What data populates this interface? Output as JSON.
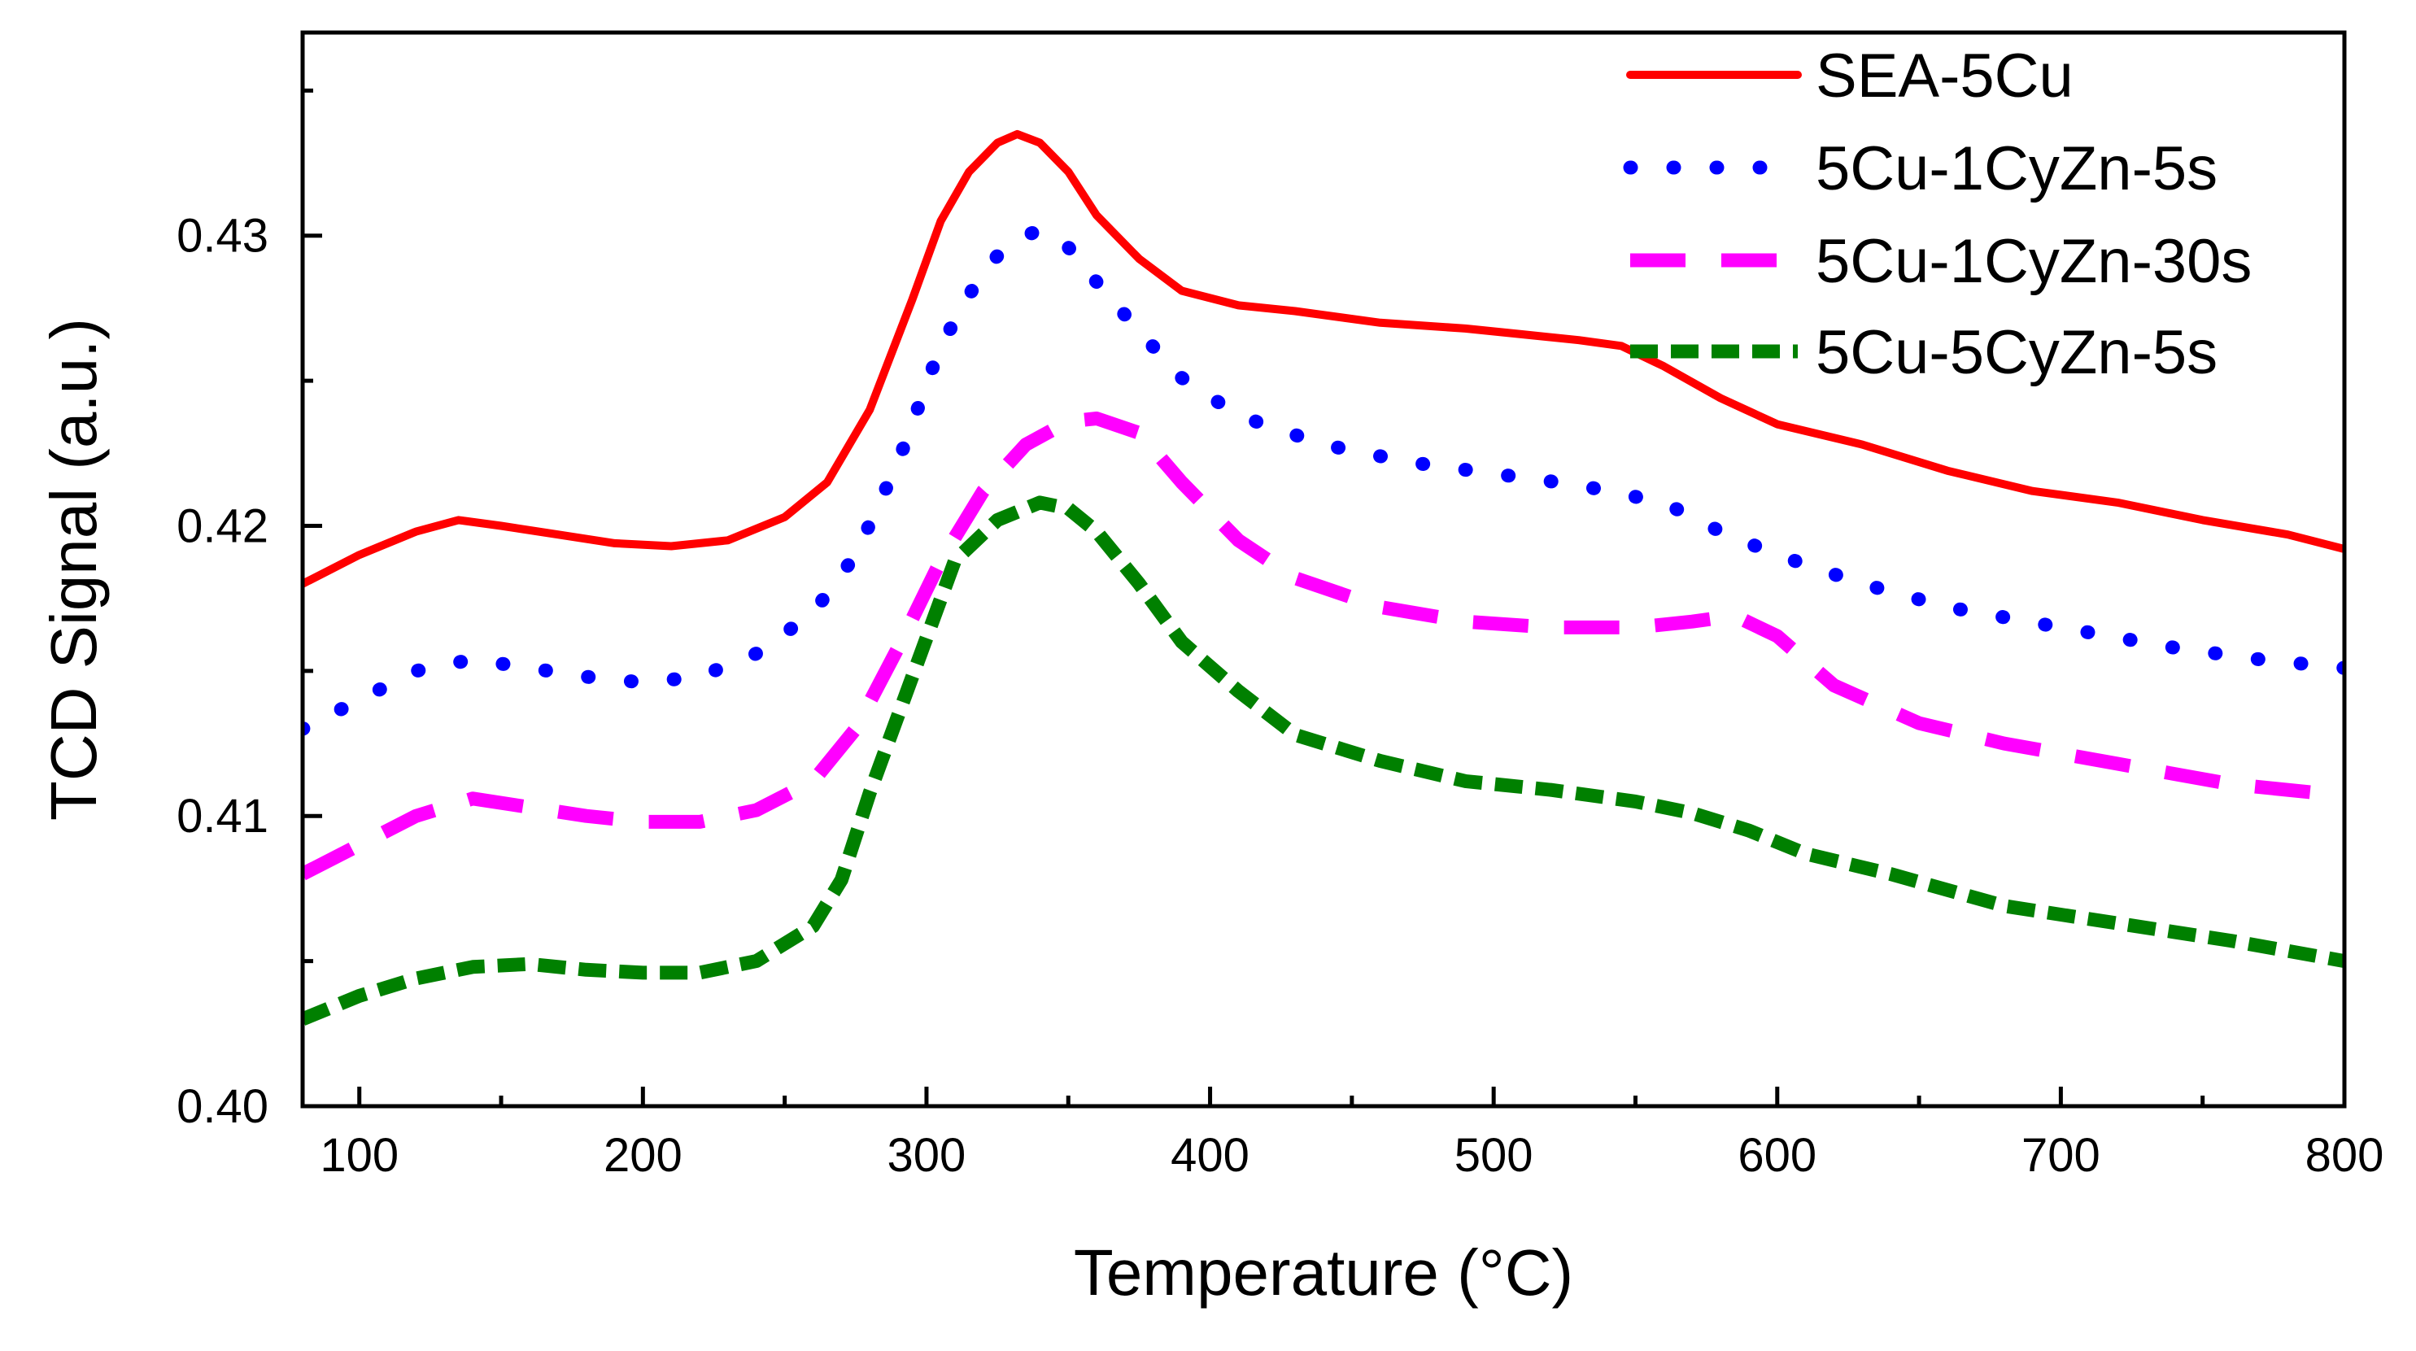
{
  "chart_data": {
    "type": "line",
    "title": "",
    "xlabel": "Temperature (°C)",
    "ylabel": "TCD Signal (a.u.)",
    "xlim": [
      80,
      800
    ],
    "ylim": [
      0.4,
      0.437
    ],
    "x_ticks": [
      100,
      200,
      300,
      400,
      500,
      600,
      700,
      800
    ],
    "x_tick_labels": [
      "100",
      "200",
      "300",
      "400",
      "500",
      "600",
      "700",
      "800"
    ],
    "x_minor_ticks": [
      150,
      250,
      350,
      450,
      550,
      650,
      750
    ],
    "y_ticks": [
      0.4,
      0.41,
      0.42,
      0.43
    ],
    "y_tick_labels": [
      "0.40",
      "0.41",
      "0.42",
      "0.43"
    ],
    "y_minor_ticks": [
      0.405,
      0.415,
      0.425,
      0.435
    ],
    "grid": false,
    "legend_position": "top-right",
    "series": [
      {
        "name": "SEA-5Cu",
        "color": "#ff0000",
        "style": "solid",
        "x": [
          80,
          100,
          120,
          135,
          150,
          170,
          190,
          210,
          230,
          250,
          265,
          280,
          295,
          305,
          315,
          325,
          332,
          340,
          350,
          360,
          375,
          390,
          410,
          430,
          460,
          490,
          510,
          530,
          545,
          560,
          580,
          600,
          630,
          660,
          690,
          720,
          750,
          780,
          800
        ],
        "values": [
          0.418,
          0.419,
          0.4198,
          0.4202,
          0.42,
          0.4197,
          0.4194,
          0.4193,
          0.4195,
          0.4203,
          0.4215,
          0.424,
          0.4278,
          0.4305,
          0.4322,
          0.4332,
          0.4335,
          0.4332,
          0.4322,
          0.4307,
          0.4292,
          0.4281,
          0.4276,
          0.4274,
          0.427,
          0.4268,
          0.4266,
          0.4264,
          0.4262,
          0.4255,
          0.4244,
          0.4235,
          0.4228,
          0.4219,
          0.4212,
          0.4208,
          0.4202,
          0.4197,
          0.4192
        ]
      },
      {
        "name": "5Cu-1CyZn-5s",
        "color": "#0000ff",
        "style": "dotted",
        "x": [
          80,
          100,
          120,
          140,
          160,
          180,
          200,
          220,
          240,
          260,
          275,
          290,
          305,
          320,
          330,
          340,
          350,
          360,
          375,
          390,
          410,
          440,
          470,
          500,
          530,
          560,
          580,
          600,
          630,
          660,
          700,
          740,
          770,
          800
        ],
        "values": [
          0.413,
          0.414,
          0.415,
          0.4154,
          0.4151,
          0.4148,
          0.4146,
          0.4148,
          0.4156,
          0.417,
          0.419,
          0.4222,
          0.4262,
          0.4288,
          0.4298,
          0.4302,
          0.4296,
          0.4284,
          0.4267,
          0.4251,
          0.4238,
          0.4228,
          0.4222,
          0.4218,
          0.4214,
          0.4208,
          0.4198,
          0.419,
          0.418,
          0.4172,
          0.4165,
          0.4158,
          0.4154,
          0.4151
        ]
      },
      {
        "name": "5Cu-1CyZn-30s",
        "color": "#ff00ff",
        "style": "dashed",
        "x": [
          80,
          100,
          120,
          140,
          160,
          180,
          200,
          220,
          240,
          260,
          275,
          290,
          305,
          320,
          335,
          350,
          360,
          375,
          390,
          410,
          430,
          460,
          490,
          520,
          550,
          570,
          585,
          600,
          620,
          650,
          680,
          720,
          760,
          800
        ],
        "values": [
          0.408,
          0.409,
          0.41,
          0.4106,
          0.4103,
          0.41,
          0.4098,
          0.4098,
          0.4102,
          0.4112,
          0.413,
          0.4158,
          0.4188,
          0.4212,
          0.4228,
          0.4236,
          0.4237,
          0.4232,
          0.4215,
          0.4195,
          0.4182,
          0.4172,
          0.4167,
          0.4165,
          0.4165,
          0.4167,
          0.4169,
          0.4162,
          0.4145,
          0.4132,
          0.4125,
          0.4118,
          0.4111,
          0.4107
        ]
      },
      {
        "name": "5Cu-5CyZn-5s",
        "color": "#008000",
        "style": "dashed-short",
        "x": [
          80,
          100,
          120,
          140,
          160,
          180,
          200,
          220,
          240,
          260,
          270,
          280,
          295,
          310,
          325,
          340,
          350,
          360,
          375,
          390,
          410,
          430,
          460,
          490,
          520,
          550,
          570,
          590,
          610,
          640,
          680,
          720,
          760,
          800
        ],
        "values": [
          0.403,
          0.4038,
          0.4044,
          0.4048,
          0.4049,
          0.4047,
          0.4046,
          0.4046,
          0.405,
          0.4062,
          0.4078,
          0.4108,
          0.4148,
          0.4188,
          0.4202,
          0.4208,
          0.4206,
          0.4198,
          0.418,
          0.416,
          0.4143,
          0.4128,
          0.4119,
          0.4112,
          0.4109,
          0.4105,
          0.4101,
          0.4095,
          0.4087,
          0.408,
          0.4069,
          0.4063,
          0.4057,
          0.405
        ]
      }
    ]
  }
}
